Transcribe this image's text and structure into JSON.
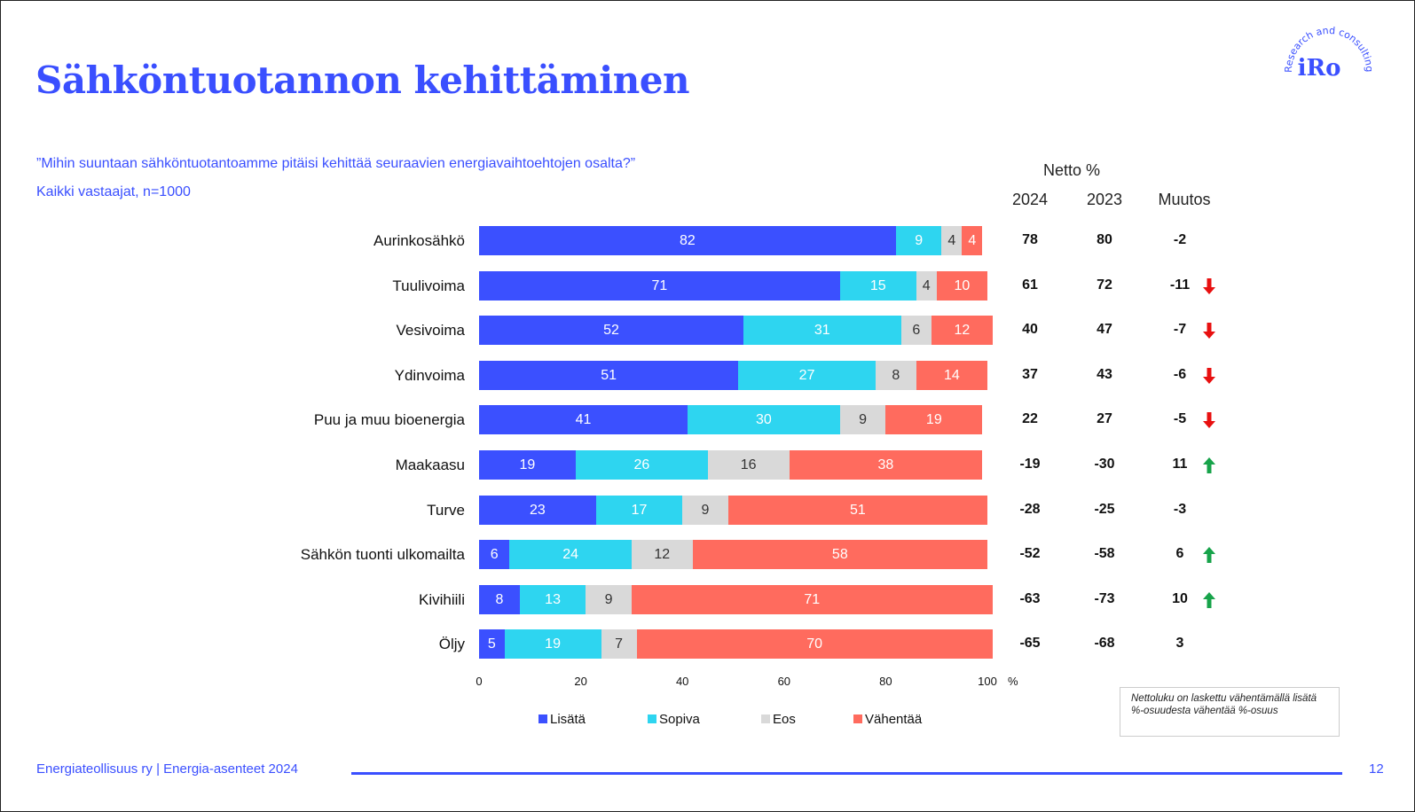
{
  "title": "Sähköntuotannon kehittäminen",
  "question": "”Mihin suuntaan sähköntuotantoamme pitäisi kehittää seuraavien energiavaihtoehtojen osalta?”",
  "sample": "Kaikki vastaajat, n=1000",
  "logo": {
    "text": "iRo",
    "ring_text": "Research and consulting"
  },
  "table_headers": {
    "netto": "Netto %",
    "year_2024": "2024",
    "year_2023": "2023",
    "change": "Muutos"
  },
  "note": "Nettoluku on laskettu vähentämällä lisätä %-osuudesta vähentää %-osuus",
  "footer": {
    "text": "Energiateollisuus ry | Energia-asenteet 2024",
    "page": "12"
  },
  "colors": {
    "accent": "#3a4fff",
    "lisata": "#3b50ff",
    "sopiva": "#2ed5f0",
    "eos": "#d9d9d9",
    "vahentaa": "#ff6b5e",
    "up": "#17a34a",
    "down": "#e81010"
  },
  "chart_data": {
    "type": "bar",
    "orientation": "horizontal",
    "stacked": true,
    "categories": [
      "Aurinkosähkö",
      "Tuulivoima",
      "Vesivoima",
      "Ydinvoima",
      "Puu ja muu bioenergia",
      "Maakaasu",
      "Turve",
      "Sähkön tuonti ulkomailta",
      "Kivihiili",
      "Öljy"
    ],
    "series": [
      {
        "name": "Lisätä",
        "values": [
          82,
          71,
          52,
          51,
          41,
          19,
          23,
          6,
          8,
          5
        ]
      },
      {
        "name": "Sopiva",
        "values": [
          9,
          15,
          31,
          27,
          30,
          26,
          17,
          24,
          13,
          19
        ]
      },
      {
        "name": "Eos",
        "values": [
          4,
          4,
          6,
          8,
          9,
          16,
          9,
          12,
          9,
          7
        ]
      },
      {
        "name": "Vähentää",
        "values": [
          4,
          10,
          12,
          14,
          19,
          38,
          51,
          58,
          71,
          70
        ]
      }
    ],
    "xlim": [
      0,
      100
    ],
    "xticks": [
      "0",
      "20",
      "40",
      "60",
      "80",
      "100"
    ],
    "xunit": "%",
    "legend_position": "bottom",
    "table": {
      "netto_2024": [
        "78",
        "61",
        "40",
        "37",
        "22",
        "-19",
        "-28",
        "-52",
        "-63",
        "-65"
      ],
      "netto_2023": [
        "80",
        "72",
        "47",
        "43",
        "27",
        "-30",
        "-25",
        "-58",
        "-73",
        "-68"
      ],
      "change": [
        "-2",
        "-11",
        "-7",
        "-6",
        "-5",
        "11",
        "-3",
        "6",
        "10",
        "3"
      ],
      "arrows": [
        "",
        "down",
        "down",
        "down",
        "down",
        "up",
        "",
        "up",
        "up",
        ""
      ]
    }
  }
}
